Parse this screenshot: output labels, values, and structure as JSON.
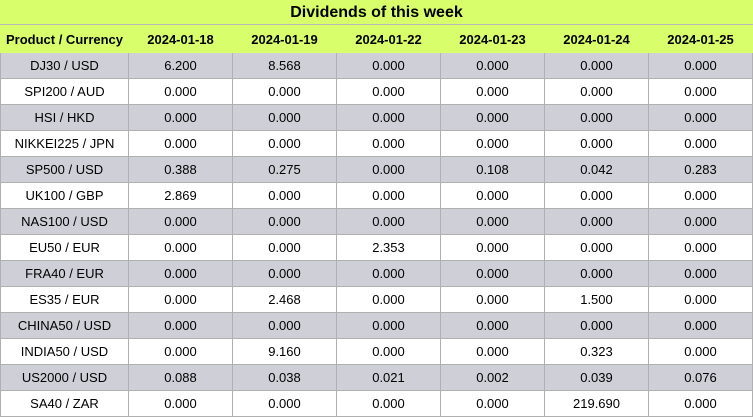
{
  "title": "Dividends of this week",
  "columns": [
    "Product / Currency",
    "2024-01-18",
    "2024-01-19",
    "2024-01-22",
    "2024-01-23",
    "2024-01-24",
    "2024-01-25"
  ],
  "rows": [
    [
      "DJ30 / USD",
      "6.200",
      "8.568",
      "0.000",
      "0.000",
      "0.000",
      "0.000"
    ],
    [
      "SPI200 / AUD",
      "0.000",
      "0.000",
      "0.000",
      "0.000",
      "0.000",
      "0.000"
    ],
    [
      "HSI / HKD",
      "0.000",
      "0.000",
      "0.000",
      "0.000",
      "0.000",
      "0.000"
    ],
    [
      "NIKKEI225 / JPN",
      "0.000",
      "0.000",
      "0.000",
      "0.000",
      "0.000",
      "0.000"
    ],
    [
      "SP500 / USD",
      "0.388",
      "0.275",
      "0.000",
      "0.108",
      "0.042",
      "0.283"
    ],
    [
      "UK100 / GBP",
      "2.869",
      "0.000",
      "0.000",
      "0.000",
      "0.000",
      "0.000"
    ],
    [
      "NAS100 / USD",
      "0.000",
      "0.000",
      "0.000",
      "0.000",
      "0.000",
      "0.000"
    ],
    [
      "EU50 / EUR",
      "0.000",
      "0.000",
      "2.353",
      "0.000",
      "0.000",
      "0.000"
    ],
    [
      "FRA40 / EUR",
      "0.000",
      "0.000",
      "0.000",
      "0.000",
      "0.000",
      "0.000"
    ],
    [
      "ES35 / EUR",
      "0.000",
      "2.468",
      "0.000",
      "0.000",
      "1.500",
      "0.000"
    ],
    [
      "CHINA50 / USD",
      "0.000",
      "0.000",
      "0.000",
      "0.000",
      "0.000",
      "0.000"
    ],
    [
      "INDIA50 / USD",
      "0.000",
      "9.160",
      "0.000",
      "0.000",
      "0.323",
      "0.000"
    ],
    [
      "US2000 / USD",
      "0.088",
      "0.038",
      "0.021",
      "0.002",
      "0.039",
      "0.076"
    ],
    [
      "SA40 / ZAR",
      "0.000",
      "0.000",
      "0.000",
      "0.000",
      "219.690",
      "0.000"
    ]
  ],
  "colors": {
    "header_bg": "#d9fe6b",
    "row_odd": "#cfcfd8",
    "row_even": "#ffffff"
  }
}
